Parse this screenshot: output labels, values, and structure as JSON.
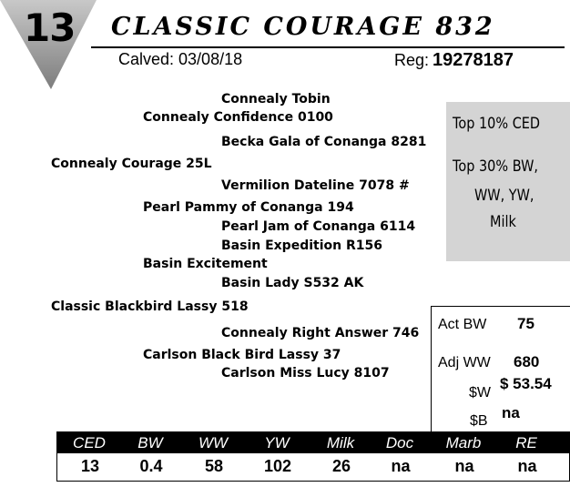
{
  "header": {
    "lot_number": "13",
    "title": "CLASSIC COURAGE 832",
    "calved": "Calved: 03/08/18",
    "reg_label": "Reg:",
    "reg_number": "19278187"
  },
  "pedigree": {
    "sire_sire_sire": "Connealy Tobin",
    "sire_sire": "Connealy Confidence 0100",
    "sire_sire_dam": "Becka Gala of Conanga 8281",
    "sire": "Connealy Courage 25L",
    "sire_dam_sire": "Vermilion Dateline 7078",
    "sire_dam_sire_mark": "#",
    "sire_dam": "Pearl Pammy of Conanga 194",
    "sire_dam_dam": "Pearl Jam of Conanga 6114",
    "dam_sire_sire": "Basin Expedition R156",
    "dam_sire": "Basin Excitement",
    "dam_sire_dam": "Basin Lady S532 AK",
    "dam": "Classic Blackbird Lassy 518",
    "dam_dam_sire": "Connealy Right Answer 746",
    "dam_dam": "Carlson Black Bird  Lassy 37",
    "dam_dam_dam": "Carlson Miss Lucy 8107"
  },
  "highlights": {
    "line1": "Top 10% CED",
    "line2": "Top 30% BW,",
    "line3": "WW, YW,",
    "line4": "Milk"
  },
  "values": {
    "act_bw_label": "Act BW",
    "act_bw": "75",
    "adj_ww_label": "Adj WW",
    "adj_ww": "680",
    "w_label": "$W",
    "w_value": "$  53.54",
    "b_label": "$B",
    "b_value": "na"
  },
  "epds": {
    "headers": [
      "CED",
      "BW",
      "WW",
      "YW",
      "Milk",
      "Doc",
      "Marb",
      "RE"
    ],
    "values": [
      "13",
      "0.4",
      "58",
      "102",
      "26",
      "na",
      "na",
      "na"
    ]
  },
  "colors": {
    "triangle": "#9a9a9a",
    "highlight_box": "#d4d4d4",
    "epd_header_bg": "#000000"
  }
}
